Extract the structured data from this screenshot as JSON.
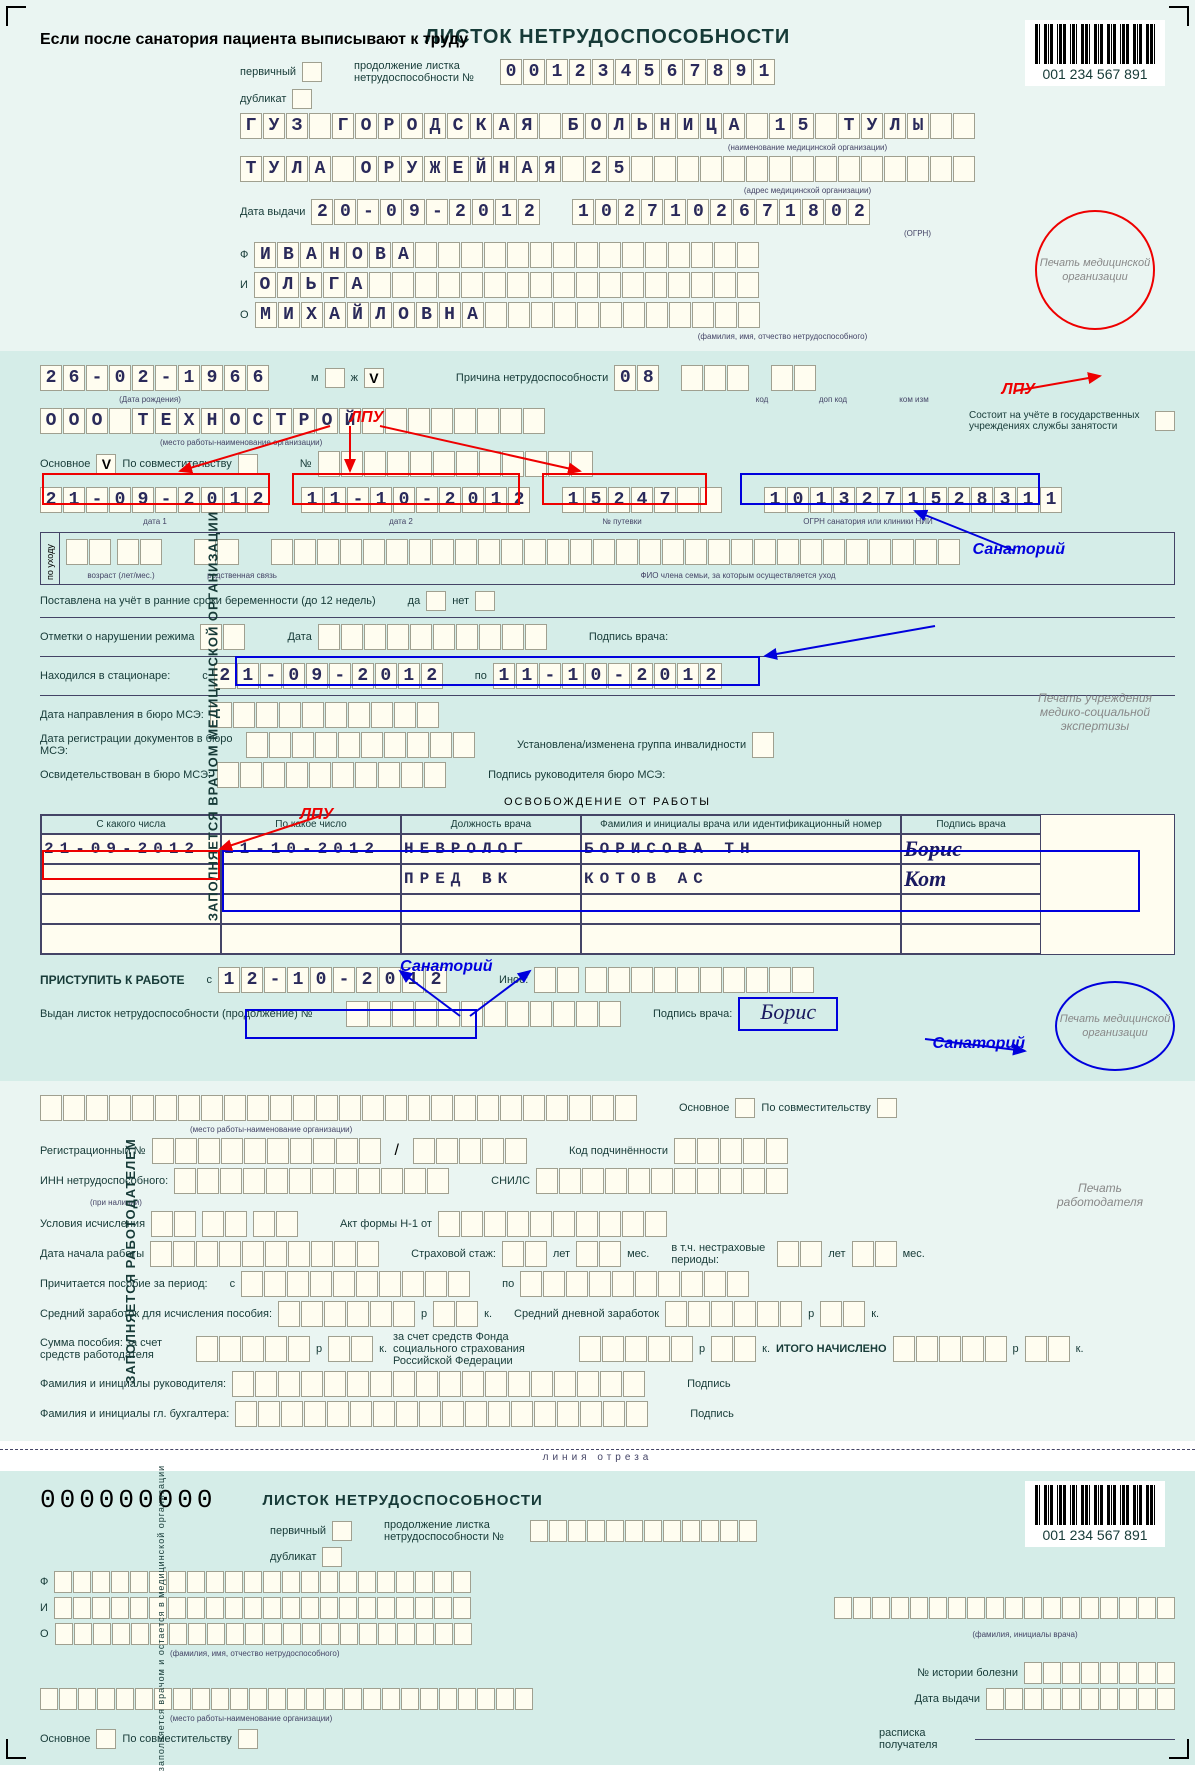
{
  "meta": {
    "title": "ЛИСТОК НЕТРУДОСПОСОБНОСТИ",
    "barcode_number": "001 234 567 891",
    "note": "Если после санатория пациента выписывают к труду"
  },
  "header": {
    "primary_lbl": "первичный",
    "duplicate_lbl": "дубликат",
    "continuation_lbl": "продолжение листка нетрудоспособности №",
    "number": "001234567891",
    "org_name": "ГУЗ ГОРОДСКАЯ БОЛЬНИЦА 15 ТУЛЫ",
    "org_sub": "(наименование медицинской организации)",
    "address": "ТУЛА ОРУЖЕЙНАЯ 25",
    "address_sub": "(адрес медицинской организации)",
    "issue_lbl": "Дата выдачи",
    "issue_date": "20-09-2012",
    "ogrn": "1027102671802",
    "ogrn_sub": "(ОГРН)",
    "surname_prefix": "Ф",
    "surname": "ИВАНОВА",
    "name_prefix": "И",
    "name": "ОЛЬГА",
    "patronymic_prefix": "О",
    "patronymic": "МИХАЙЛОВНА",
    "fio_sub": "(фамилия, имя, отчество нетрудоспособного)",
    "stamp_text": "Печать медицинской организации"
  },
  "doctor_section": {
    "vertical_label": "ЗАПОЛНЯЕТСЯ ВРАЧОМ МЕДИЦИНСКОЙ ОРГАНИЗАЦИИ",
    "birth_date": "26-02-1966",
    "birth_sub": "(Дата рождения)",
    "sex_m": "м",
    "sex_f": "ж",
    "sex_checked": "V",
    "cause_lbl": "Причина нетрудоспособности",
    "cause_code": "08",
    "cause_labels": {
      "code": "код",
      "add": "доп код",
      "chg": "ком изм"
    },
    "employer": "ООО ТЕХНОСТРОЙ",
    "employer_sub": "(место работы-наименование организации)",
    "main_lbl": "Основное",
    "main_checked": "V",
    "part_lbl": "По совместительству",
    "num_lbl": "№",
    "registry_lbl": "Состоит на учёте в государственных учреждениях службы занятости",
    "date1": "21-09-2012",
    "date1_sub": "дата 1",
    "date2": "11-10-2012",
    "date2_sub": "дата 2",
    "voucher": "15247",
    "voucher_sub": "№ путевки",
    "ogrn_san": "1013271528311",
    "ogrn_san_sub": "ОГРН санатория или клиники НИИ",
    "care_lbl": "по уходу",
    "age_lbl": "возраст (лет/мес.)",
    "rel_lbl": "родственная связь",
    "fio_care_lbl": "ФИО члена семьи, за которым осуществляется уход",
    "preg_lbl": "Поставлена на учёт в ранние сроки беременности (до 12 недель)",
    "yes": "да",
    "no": "нет",
    "violation_lbl": "Отметки о нарушении режима",
    "date_lbl": "Дата",
    "doc_sign_lbl": "Подпись врача:",
    "hosp_lbl": "Находился в стационаре:",
    "hosp_from_lbl": "с",
    "hosp_from": "21-09-2012",
    "hosp_to_lbl": "по",
    "hosp_to": "11-10-2012",
    "mse_dir_lbl": "Дата направления в бюро МСЭ:",
    "mse_reg_lbl": "Дата регистрации документов в бюро МСЭ:",
    "mse_group_lbl": "Установлена/изменена группа инвалидности",
    "mse_exam_lbl": "Освидетельствован в бюро МСЭ:",
    "mse_head_lbl": "Подпись руководителя бюро МСЭ:",
    "stamp2_text": "Печать учреждения медико-социальной экспертизы",
    "release_title": "ОСВОБОЖДЕНИЕ ОТ РАБОТЫ",
    "release_cols": [
      "С какого числа",
      "По какое число",
      "Должность врача",
      "Фамилия и инициалы врача или идентификационный номер",
      "Подпись врача"
    ],
    "release_rows": [
      {
        "from": "21-09-2012",
        "to": "11-10-2012",
        "pos": "НЕВРОЛОГ",
        "doc": "БОРИСОВА ТН",
        "sig": "Борис"
      },
      {
        "from": "",
        "to": "",
        "pos": "ПРЕД ВК",
        "doc": "КОТОВ АС",
        "sig": "Кот"
      }
    ],
    "start_work_lbl": "ПРИСТУПИТЬ К РАБОТЕ",
    "start_work_from": "с",
    "start_work": "12-10-2012",
    "other_lbl": "Иное:",
    "issued_cont_lbl": "Выдан листок нетрудоспособности (продолжение) №",
    "doc_sign2": "Подпись врача:",
    "doc_sig_value": "Борис",
    "stamp3_text": "Печать медицинской организации"
  },
  "employer_section": {
    "vertical_label": "ЗАПОЛНЯЕТСЯ РАБОТОДАТЕЛЕМ",
    "org_sub": "(место работы-наименование организации)",
    "main_lbl": "Основное",
    "part_lbl": "По совместительству",
    "reg_lbl": "Регистрационный №",
    "sub_code_lbl": "Код подчинённости",
    "inn_lbl": "ИНН нетрудоспособного:",
    "inn_sub": "(при наличии)",
    "snils_lbl": "СНИЛС",
    "cond_lbl": "Условия исчисления",
    "act_lbl": "Акт формы Н-1 от",
    "start_lbl": "Дата начала работы",
    "ins_lbl": "Страховой стаж:",
    "years": "лет",
    "months": "мес.",
    "nonins_lbl": "в т.ч. нестраховые периоды:",
    "benefit_period_lbl": "Причитается пособие за период:",
    "from": "с",
    "to": "по",
    "avg_earn_lbl": "Средний заработок для исчисления пособия:",
    "avg_day_lbl": "Средний дневной заработок",
    "rub": "р",
    "kop": "к.",
    "sum_lbl": "Сумма пособия: за счет средств работодателя",
    "sum_fss_lbl": "за счет средств Фонда социального страхования Российской Федерации",
    "total_lbl": "ИТОГО НАЧИСЛЕНО",
    "head_lbl": "Фамилия и инициалы руководителя:",
    "acc_lbl": "Фамилия и инициалы гл. бухгалтера:",
    "sign_lbl": "Подпись",
    "stamp_text": "Печать работодателя"
  },
  "cutaway": {
    "cut_lbl": "линия отреза",
    "vertical_label": "заполняется врачом и остается в медицинской организации",
    "title": "ЛИСТОК НЕТРУДОСПОСОБНОСТИ",
    "number": "000000000",
    "primary_lbl": "первичный",
    "duplicate_lbl": "дубликат",
    "continuation_lbl": "продолжение листка нетрудоспособности №",
    "barcode_number": "001 234 567 891",
    "fio_sub": "(фамилия, имя, отчество нетрудоспособного)",
    "org_sub": "(место работы-наименование организации)",
    "doc_sub": "(фамилия, инициалы врача)",
    "hist_lbl": "№ истории болезни",
    "date_lbl": "Дата выдачи",
    "receipt_lbl": "расписка получателя",
    "main_lbl": "Основное",
    "part_lbl": "По совместительству"
  },
  "annotations": {
    "lpu": "ЛПУ",
    "sanatorium": "Санаторий",
    "colors": {
      "red": "#e00",
      "blue": "#00d"
    }
  }
}
